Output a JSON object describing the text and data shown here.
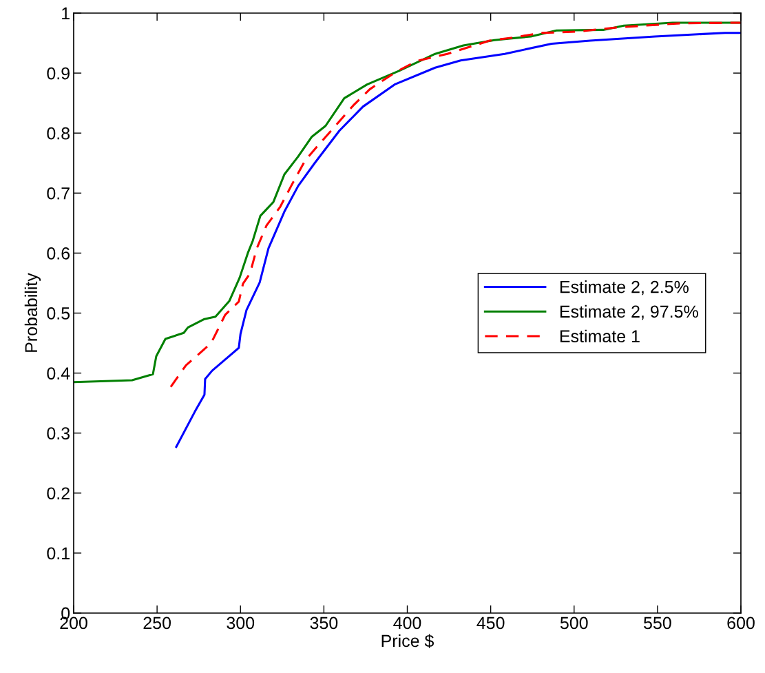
{
  "chart_data": {
    "type": "line",
    "xlabel": "Price $",
    "ylabel": "Probability",
    "xlim": [
      200,
      600
    ],
    "ylim": [
      0,
      1
    ],
    "xticks": [
      200,
      250,
      300,
      350,
      400,
      450,
      500,
      550,
      600
    ],
    "yticks": [
      0,
      0.1,
      0.2,
      0.3,
      0.4,
      0.5,
      0.6,
      0.7,
      0.8,
      0.9,
      1
    ],
    "grid": false,
    "legend": "right",
    "marker": "none",
    "series": [
      {
        "name": "Estimate 2, 2.5%",
        "color": "#0000ff",
        "line_style": "solid",
        "x": [
          261.5,
          272.7,
          278.4,
          278.8,
          283,
          299,
          300,
          303.6,
          311.5,
          316.8,
          326.3,
          334.6,
          344.5,
          359.3,
          373.4,
          392.4,
          416.7,
          432,
          458.4,
          486.5,
          509.6,
          548.4,
          590.5,
          600
        ],
        "values": [
          0.277,
          0.336,
          0.364,
          0.39,
          0.404,
          0.442,
          0.465,
          0.505,
          0.551,
          0.608,
          0.669,
          0.712,
          0.75,
          0.804,
          0.844,
          0.881,
          0.909,
          0.921,
          0.932,
          0.949,
          0.954,
          0.961,
          0.967,
          0.967
        ]
      },
      {
        "name": "Estimate 2, 97.5%",
        "color": "#008000",
        "line_style": "solid",
        "x": [
          200,
          235,
          247.5,
          249.5,
          255,
          266,
          268.5,
          278.4,
          285,
          293.3,
          299.5,
          304.4,
          307.3,
          311.9,
          319.7,
          326.3,
          334.6,
          342.8,
          351,
          362.2,
          375.9,
          395.3,
          416.7,
          433.6,
          452.2,
          474,
          489.4,
          517.4,
          529.8,
          559,
          600
        ],
        "values": [
          0.385,
          0.388,
          0.398,
          0.428,
          0.457,
          0.467,
          0.476,
          0.49,
          0.494,
          0.52,
          0.559,
          0.6,
          0.62,
          0.662,
          0.685,
          0.731,
          0.761,
          0.794,
          0.812,
          0.858,
          0.881,
          0.904,
          0.932,
          0.946,
          0.955,
          0.961,
          0.971,
          0.972,
          0.979,
          0.984,
          0.984
        ]
      },
      {
        "name": "Estimate 1",
        "color": "#ff0000",
        "line_style": "dashed",
        "x": [
          258.2,
          267.3,
          278.4,
          282.6,
          286.7,
          290.8,
          299,
          301.5,
          305.7,
          309.8,
          315.6,
          323.8,
          330.4,
          338.7,
          347,
          356.9,
          367.6,
          377.5,
          393.2,
          405.6,
          424,
          449.3,
          463,
          480.3,
          501.7,
          525.3,
          564,
          600
        ],
        "values": [
          0.377,
          0.413,
          0.44,
          0.451,
          0.474,
          0.497,
          0.519,
          0.549,
          0.566,
          0.608,
          0.646,
          0.677,
          0.712,
          0.754,
          0.781,
          0.812,
          0.846,
          0.873,
          0.902,
          0.92,
          0.932,
          0.954,
          0.959,
          0.967,
          0.969,
          0.976,
          0.983,
          0.984
        ]
      }
    ]
  }
}
